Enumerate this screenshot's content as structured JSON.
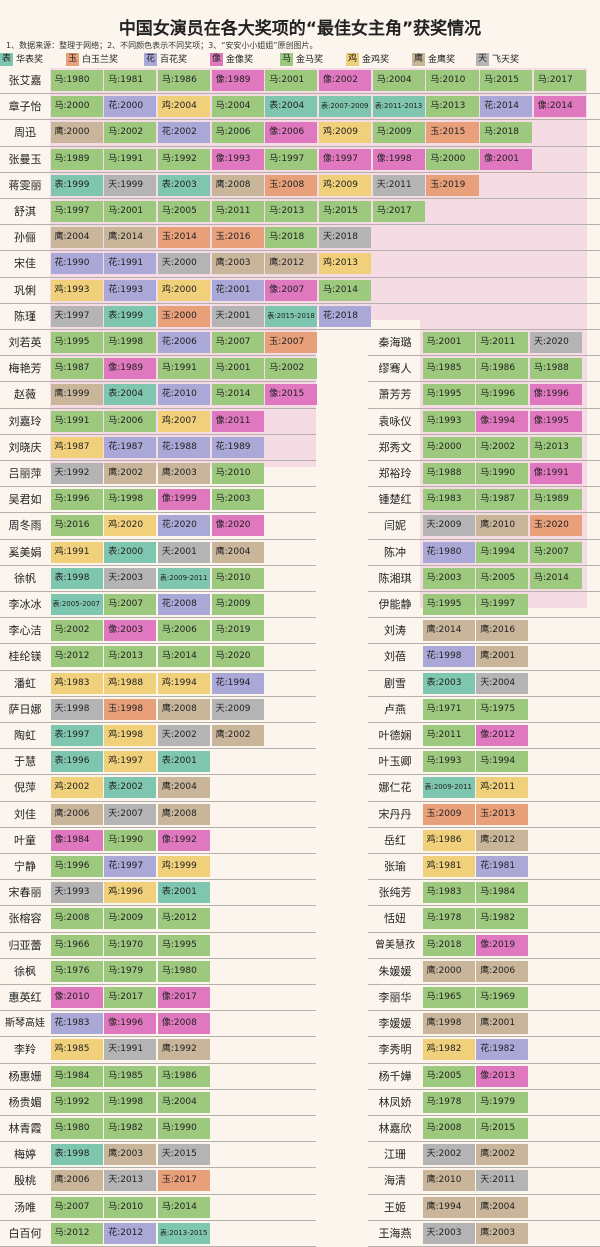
{
  "title": "中国女演员在各大奖项的“最佳女主角”获奖情况",
  "note": "1、数据来源：整理于网络；2、不同颜色表示不同奖项；3、“安安小小姐姐”原创图片。",
  "colors": {
    "表": "#7fc6b0",
    "玉": "#e8a07a",
    "花": "#a9a8d6",
    "像": "#e078bf",
    "马": "#9dc97f",
    "鸡": "#f0d07a",
    "鹰": "#c8b59a",
    "天": "#b4b4b4"
  },
  "legend": [
    {
      "abbr": "表",
      "label": "华表奖"
    },
    {
      "abbr": "玉",
      "label": "白玉兰奖"
    },
    {
      "abbr": "花",
      "label": "百花奖"
    },
    {
      "abbr": "像",
      "label": "金像奖"
    },
    {
      "abbr": "马",
      "label": "金马奖"
    },
    {
      "abbr": "鸡",
      "label": "金鸡奖"
    },
    {
      "abbr": "鹰",
      "label": "金鹰奖"
    },
    {
      "abbr": "天",
      "label": "飞天奖"
    }
  ],
  "chart_data": {
    "type": "table",
    "title": "中国女演员在各大奖项的“最佳女主角”获奖情况",
    "top_section": [
      {
        "name": "张艾嘉",
        "awards": [
          "马:1980",
          "马:1981",
          "马:1986",
          "像:1989",
          "马:2001",
          "像:2002",
          "马:2004",
          "马:2010",
          "马:2015",
          "马:2017"
        ]
      },
      {
        "name": "章子怡",
        "awards": [
          "马:2000",
          "花:2000",
          "鸡:2004",
          "马:2004",
          "表:2004",
          "表:2007-2009",
          "表:2011-2013",
          "马:2013",
          "花:2014",
          "像:2014"
        ]
      },
      {
        "name": "周迅",
        "awards": [
          "鹰:2000",
          "马:2002",
          "花:2002",
          "马:2006",
          "像:2006",
          "鸡:2009",
          "马:2009",
          "玉:2015",
          "马:2018"
        ]
      },
      {
        "name": "张曼玉",
        "awards": [
          "马:1989",
          "马:1991",
          "马:1992",
          "像:1993",
          "马:1997",
          "像:1997",
          "像:1998",
          "马:2000",
          "像:2001"
        ]
      },
      {
        "name": "蒋雯丽",
        "awards": [
          "表:1999",
          "天:1999",
          "表:2003",
          "鹰:2008",
          "玉:2008",
          "鸡:2009",
          "天:2011",
          "玉:2019"
        ]
      },
      {
        "name": "舒淇",
        "awards": [
          "马:1997",
          "马:2001",
          "马:2005",
          "马:2011",
          "马:2013",
          "马:2015",
          "马:2017"
        ]
      },
      {
        "name": "孙俪",
        "awards": [
          "鹰:2004",
          "鹰:2014",
          "玉:2014",
          "玉:2016",
          "马:2018",
          "天:2018"
        ]
      },
      {
        "name": "宋佳",
        "awards": [
          "花:1990",
          "花:1991",
          "天:2000",
          "鹰:2003",
          "鹰:2012",
          "鸡:2013"
        ]
      },
      {
        "name": "巩俐",
        "awards": [
          "鸡:1993",
          "花:1993",
          "鸡:2000",
          "花:2001",
          "像:2007",
          "马:2014"
        ]
      },
      {
        "name": "陈瑾",
        "awards": [
          "天:1997",
          "表:1999",
          "玉:2000",
          "天:2001",
          "表:2015-2018",
          "花:2018"
        ]
      }
    ],
    "left_section": [
      {
        "name": "刘若英",
        "awards": [
          "马:1995",
          "马:1998",
          "花:2006",
          "马:2007",
          "玉:2007"
        ]
      },
      {
        "name": "梅艳芳",
        "awards": [
          "马:1987",
          "像:1989",
          "马:1991",
          "马:2001",
          "马:2002"
        ]
      },
      {
        "name": "赵薇",
        "awards": [
          "鹰:1999",
          "表:2004",
          "花:2010",
          "马:2014",
          "像:2015"
        ]
      },
      {
        "name": "刘嘉玲",
        "awards": [
          "马:1991",
          "马:2006",
          "鸡:2007",
          "像:2011"
        ]
      },
      {
        "name": "刘晓庆",
        "awards": [
          "鸡:1987",
          "花:1987",
          "花:1988",
          "花:1989"
        ]
      },
      {
        "name": "吕丽萍",
        "awards": [
          "天:1992",
          "鹰:2002",
          "鹰:2003",
          "马:2010"
        ]
      },
      {
        "name": "吴君如",
        "awards": [
          "马:1996",
          "马:1998",
          "像:1999",
          "马:2003"
        ]
      },
      {
        "name": "周冬雨",
        "awards": [
          "马:2016",
          "鸡:2020",
          "花:2020",
          "像:2020"
        ]
      },
      {
        "name": "奚美娟",
        "awards": [
          "鸡:1991",
          "表:2000",
          "天:2001",
          "鹰:2004"
        ]
      },
      {
        "name": "徐帆",
        "awards": [
          "表:1998",
          "天:2003",
          "表:2009-2011",
          "马:2010"
        ]
      },
      {
        "name": "李冰冰",
        "awards": [
          "表:2005-2007",
          "马:2007",
          "花:2008",
          "马:2009"
        ]
      },
      {
        "name": "李心洁",
        "awards": [
          "马:2002",
          "像:2003",
          "马:2006",
          "马:2019"
        ]
      },
      {
        "name": "桂纶镁",
        "awards": [
          "马:2012",
          "马:2013",
          "马:2014",
          "马:2020"
        ]
      },
      {
        "name": "潘虹",
        "awards": [
          "鸡:1983",
          "鸡:1988",
          "鸡:1994",
          "花:1994"
        ]
      },
      {
        "name": "萨日娜",
        "awards": [
          "天:1998",
          "玉:1998",
          "鹰:2008",
          "天:2009"
        ]
      },
      {
        "name": "陶虹",
        "awards": [
          "表:1997",
          "鸡:1998",
          "天:2002",
          "鹰:2002"
        ]
      },
      {
        "name": "于慧",
        "awards": [
          "表:1996",
          "鸡:1997",
          "表:2001"
        ]
      },
      {
        "name": "倪萍",
        "awards": [
          "鸡:2002",
          "表:2002",
          "鹰:2004"
        ]
      },
      {
        "name": "刘佳",
        "awards": [
          "鹰:2006",
          "天:2007",
          "鹰:2008"
        ]
      },
      {
        "name": "叶童",
        "awards": [
          "像:1984",
          "马:1990",
          "像:1992"
        ]
      },
      {
        "name": "宁静",
        "awards": [
          "马:1996",
          "花:1997",
          "鸡:1999"
        ]
      },
      {
        "name": "宋春丽",
        "awards": [
          "天:1993",
          "鸡:1996",
          "表:2001"
        ]
      },
      {
        "name": "张榕容",
        "awards": [
          "马:2008",
          "马:2009",
          "马:2012"
        ]
      },
      {
        "name": "归亚蕾",
        "awards": [
          "马:1966",
          "马:1970",
          "马:1995"
        ]
      },
      {
        "name": "徐枫",
        "awards": [
          "马:1976",
          "马:1979",
          "马:1980"
        ]
      },
      {
        "name": "惠英红",
        "awards": [
          "像:2010",
          "马:2017",
          "像:2017"
        ]
      },
      {
        "name": "斯琴高娃",
        "awards": [
          "花:1983",
          "像:1996",
          "像:2008"
        ]
      },
      {
        "name": "李羚",
        "awards": [
          "鸡:1985",
          "天:1991",
          "鹰:1992"
        ]
      },
      {
        "name": "杨惠姗",
        "awards": [
          "马:1984",
          "马:1985",
          "马:1986"
        ]
      },
      {
        "name": "杨贵媚",
        "awards": [
          "马:1992",
          "马:1998",
          "马:2004"
        ]
      },
      {
        "name": "林青霞",
        "awards": [
          "马:1980",
          "马:1982",
          "马:1990"
        ]
      },
      {
        "name": "梅婷",
        "awards": [
          "表:1998",
          "鹰:2003",
          "天:2015"
        ]
      },
      {
        "name": "殷桃",
        "awards": [
          "鹰:2006",
          "天:2013",
          "玉:2017"
        ]
      },
      {
        "name": "汤唯",
        "awards": [
          "马:2007",
          "马:2010",
          "马:2014"
        ]
      },
      {
        "name": "白百何",
        "awards": [
          "马:2012",
          "花:2012",
          "表:2013-2015"
        ]
      }
    ],
    "right_section": [
      {
        "name": "秦海璐",
        "awards": [
          "马:2001",
          "马:2011",
          "天:2020"
        ]
      },
      {
        "name": "缪骞人",
        "awards": [
          "马:1985",
          "马:1986",
          "马:1988"
        ]
      },
      {
        "name": "萧芳芳",
        "awards": [
          "马:1995",
          "马:1996",
          "像:1996"
        ]
      },
      {
        "name": "袁咏仪",
        "awards": [
          "马:1993",
          "像:1994",
          "像:1995"
        ]
      },
      {
        "name": "郑秀文",
        "awards": [
          "马:2000",
          "马:2002",
          "马:2013"
        ]
      },
      {
        "name": "郑裕玲",
        "awards": [
          "马:1988",
          "马:1990",
          "像:1991"
        ]
      },
      {
        "name": "锺楚红",
        "awards": [
          "马:1983",
          "马:1987",
          "马:1989"
        ]
      },
      {
        "name": "闫妮",
        "awards": [
          "天:2009",
          "鹰:2010",
          "玉:2020"
        ]
      },
      {
        "name": "陈冲",
        "awards": [
          "花:1980",
          "马:1994",
          "马:2007"
        ]
      },
      {
        "name": "陈湘琪",
        "awards": [
          "马:2003",
          "马:2005",
          "马:2014"
        ]
      },
      {
        "name": "伊能静",
        "awards": [
          "马:1995",
          "马:1997"
        ]
      },
      {
        "name": "刘涛",
        "awards": [
          "鹰:2014",
          "鹰:2016"
        ]
      },
      {
        "name": "刘蓓",
        "awards": [
          "花:1998",
          "鹰:2001"
        ]
      },
      {
        "name": "剧雪",
        "awards": [
          "表:2003",
          "天:2004"
        ]
      },
      {
        "name": "卢燕",
        "awards": [
          "马:1971",
          "马:1975"
        ]
      },
      {
        "name": "叶德娴",
        "awards": [
          "马:2011",
          "像:2012"
        ]
      },
      {
        "name": "叶玉卿",
        "awards": [
          "马:1993",
          "马:1994"
        ]
      },
      {
        "name": "娜仁花",
        "awards": [
          "表:2009-2011",
          "鸡:2011"
        ]
      },
      {
        "name": "宋丹丹",
        "awards": [
          "玉:2009",
          "玉:2013"
        ]
      },
      {
        "name": "岳红",
        "awards": [
          "鸡:1986",
          "鹰:2012"
        ]
      },
      {
        "name": "张瑜",
        "awards": [
          "鸡:1981",
          "花:1981"
        ]
      },
      {
        "name": "张纯芳",
        "awards": [
          "马:1983",
          "马:1984"
        ]
      },
      {
        "name": "恬妞",
        "awards": [
          "马:1978",
          "马:1982"
        ]
      },
      {
        "name": "曾美慧孜",
        "awards": [
          "马:2018",
          "像:2019"
        ]
      },
      {
        "name": "朱媛媛",
        "awards": [
          "鹰:2000",
          "鹰:2006"
        ]
      },
      {
        "name": "李丽华",
        "awards": [
          "马:1965",
          "马:1969"
        ]
      },
      {
        "name": "李媛媛",
        "awards": [
          "鹰:1998",
          "鹰:2001"
        ]
      },
      {
        "name": "李秀明",
        "awards": [
          "鸡:1982",
          "花:1982"
        ]
      },
      {
        "name": "杨千嬅",
        "awards": [
          "马:2005",
          "像:2013"
        ]
      },
      {
        "name": "林凤娇",
        "awards": [
          "马:1978",
          "马:1979"
        ]
      },
      {
        "name": "林嘉欣",
        "awards": [
          "马:2008",
          "马:2015"
        ]
      },
      {
        "name": "江珊",
        "awards": [
          "天:2002",
          "鹰:2002"
        ]
      },
      {
        "name": "海清",
        "awards": [
          "鹰:2010",
          "天:2011"
        ]
      },
      {
        "name": "王姬",
        "awards": [
          "鹰:1994",
          "鹰:2004"
        ]
      },
      {
        "name": "王海燕",
        "awards": [
          "天:2003",
          "鹰:2003"
        ]
      }
    ]
  }
}
